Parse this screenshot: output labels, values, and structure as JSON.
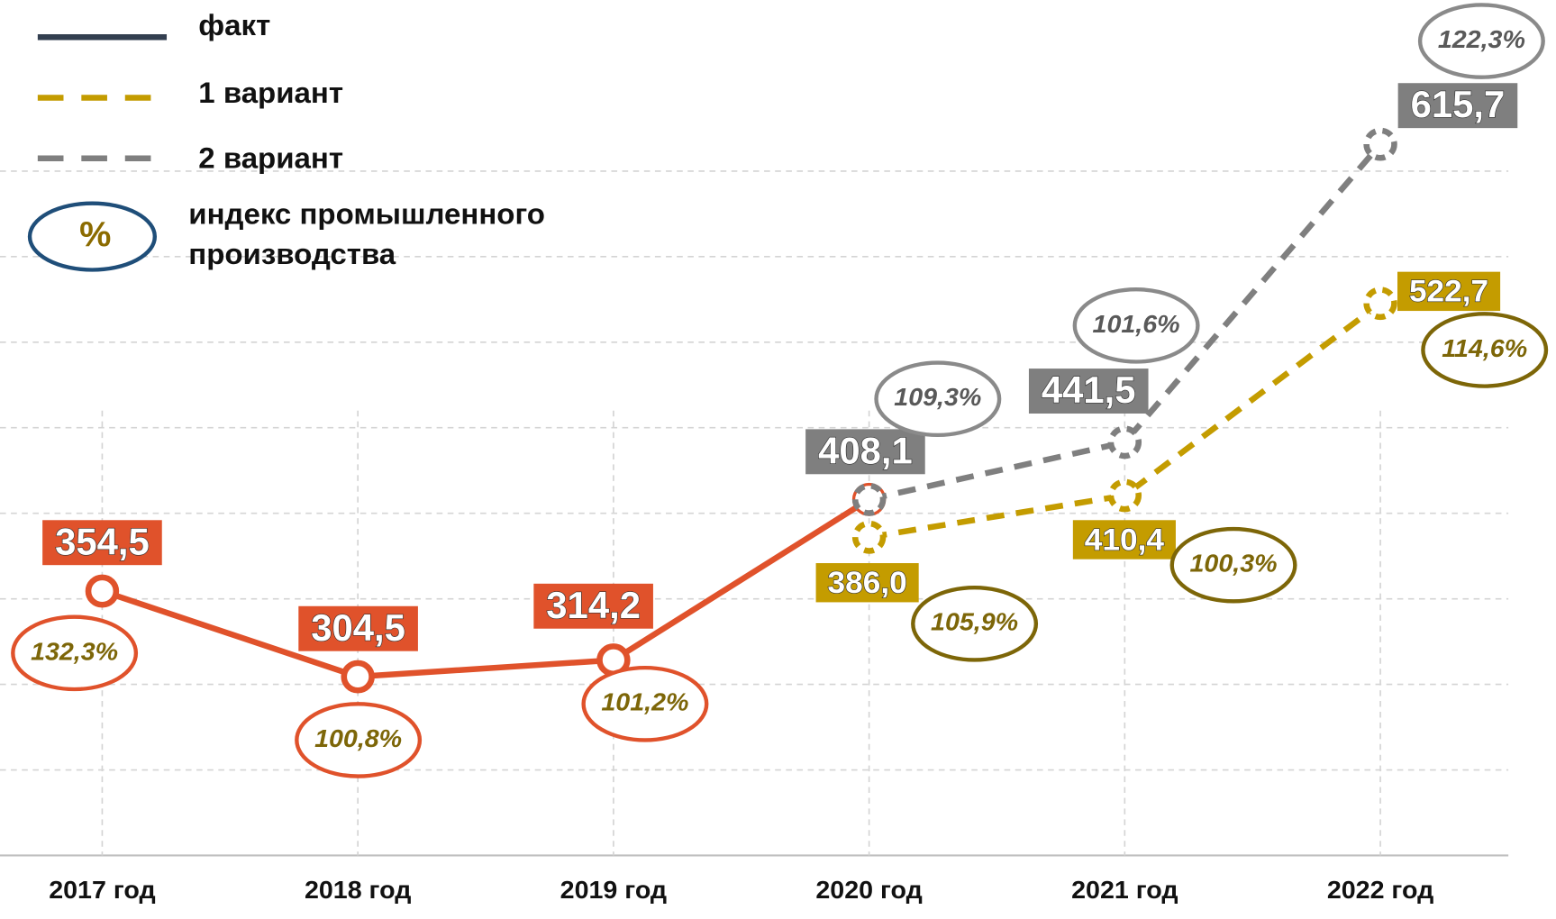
{
  "chart_data": {
    "type": "line",
    "categories": [
      "2017 год",
      "2018 год",
      "2019 год",
      "2020 год",
      "2021 год",
      "2022 год"
    ],
    "series": [
      {
        "name": "факт",
        "color": "#e0522b",
        "values": [
          354.5,
          304.5,
          314.2,
          408.1,
          null,
          null
        ],
        "value_labels": [
          "354,5",
          "304,5",
          "314,2",
          null,
          null,
          null
        ],
        "index_labels": [
          "132,3%",
          "100,8%",
          "101,2%",
          null,
          null,
          null
        ]
      },
      {
        "name": "1 вариант",
        "color": "#c49c00",
        "values": [
          null,
          null,
          null,
          386.0,
          410.4,
          522.7
        ],
        "value_labels": [
          null,
          null,
          null,
          "386,0",
          "410,4",
          "522,7"
        ],
        "index_labels": [
          null,
          null,
          null,
          "105,9%",
          "100,3%",
          "114,6%"
        ]
      },
      {
        "name": "2 вариант",
        "color": "#7f7f7f",
        "values": [
          null,
          null,
          null,
          408.1,
          441.5,
          615.7
        ],
        "value_labels": [
          null,
          null,
          null,
          "408,1",
          "441,5",
          "615,7"
        ],
        "index_labels": [
          null,
          null,
          null,
          "109,3%",
          "101,6%",
          "122,3%"
        ]
      }
    ],
    "index_legend": {
      "symbol": "%",
      "lines": [
        "индекс промышленного",
        "производства"
      ]
    },
    "ylim": [
      200,
      700
    ],
    "yticks": [
      250,
      300,
      350,
      400,
      450,
      500,
      550,
      600
    ],
    "grid": true
  }
}
